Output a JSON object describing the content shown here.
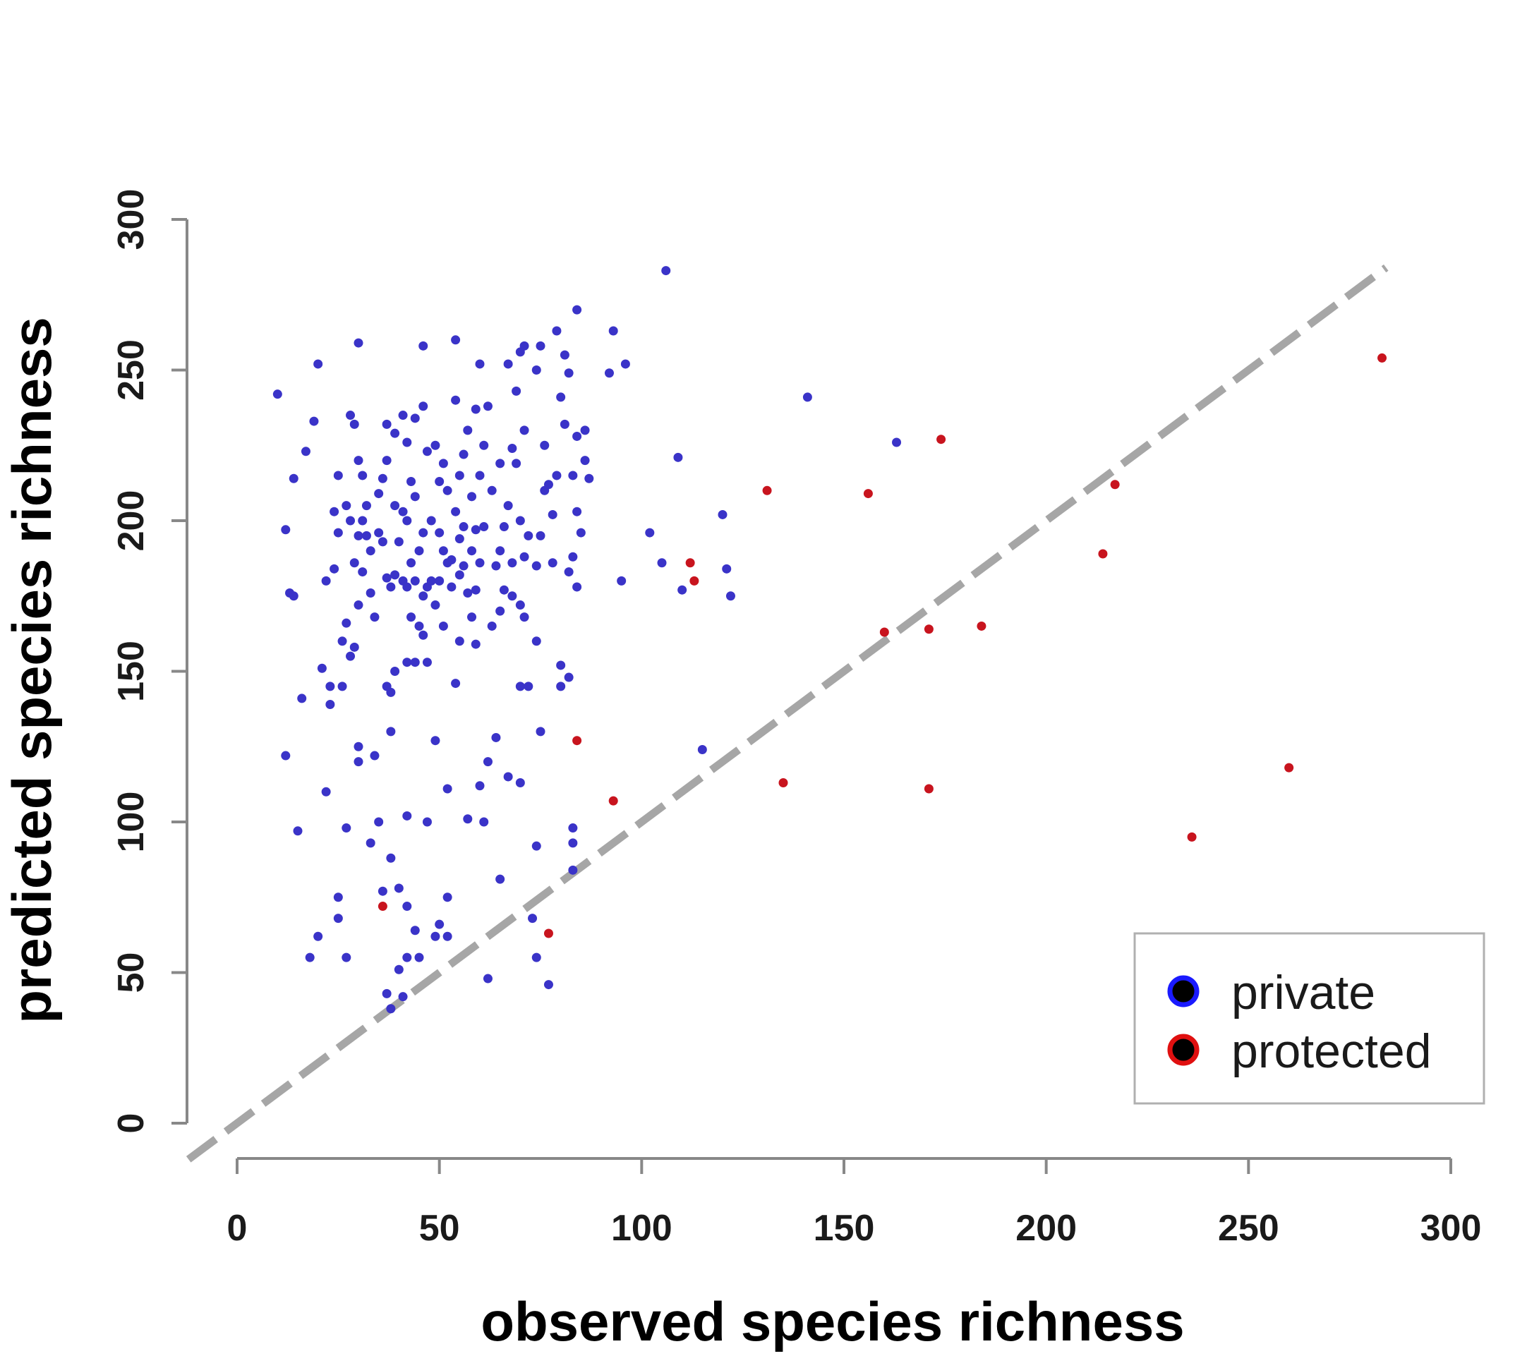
{
  "chart_data": {
    "type": "scatter",
    "title": "",
    "xlabel": "observed species richness",
    "ylabel": "predicted species richness",
    "xlim": [
      0,
      300
    ],
    "ylim": [
      0,
      300
    ],
    "xticks": [
      "0",
      "50",
      "100",
      "150",
      "200",
      "250",
      "300"
    ],
    "yticks": [
      "0",
      "50",
      "100",
      "150",
      "200",
      "250",
      "300"
    ],
    "grid": false,
    "legend_position": "bottom-right",
    "reference_line": {
      "type": "1:1",
      "style": "dashed",
      "color": "#a6a6a6"
    },
    "series": [
      {
        "name": "private",
        "color": "#3a33c8",
        "legend_marker_color": "#1a1aff",
        "points": [
          [
            10,
            242
          ],
          [
            12,
            197
          ],
          [
            12,
            122
          ],
          [
            13,
            176
          ],
          [
            14,
            175
          ],
          [
            14,
            214
          ],
          [
            15,
            97
          ],
          [
            16,
            141
          ],
          [
            17,
            223
          ],
          [
            18,
            55
          ],
          [
            19,
            233
          ],
          [
            20,
            252
          ],
          [
            20,
            62
          ],
          [
            21,
            151
          ],
          [
            22,
            180
          ],
          [
            22,
            110
          ],
          [
            23,
            145
          ],
          [
            23,
            139
          ],
          [
            24,
            203
          ],
          [
            24,
            184
          ],
          [
            25,
            215
          ],
          [
            25,
            196
          ],
          [
            25,
            75
          ],
          [
            25,
            68
          ],
          [
            26,
            160
          ],
          [
            26,
            145
          ],
          [
            27,
            205
          ],
          [
            27,
            166
          ],
          [
            27,
            98
          ],
          [
            27,
            55
          ],
          [
            28,
            235
          ],
          [
            28,
            200
          ],
          [
            28,
            155
          ],
          [
            29,
            232
          ],
          [
            29,
            186
          ],
          [
            29,
            158
          ],
          [
            30,
            259
          ],
          [
            30,
            220
          ],
          [
            30,
            195
          ],
          [
            30,
            172
          ],
          [
            30,
            125
          ],
          [
            30,
            120
          ],
          [
            31,
            215
          ],
          [
            31,
            200
          ],
          [
            31,
            183
          ],
          [
            32,
            205
          ],
          [
            32,
            195
          ],
          [
            33,
            190
          ],
          [
            33,
            176
          ],
          [
            33,
            93
          ],
          [
            34,
            168
          ],
          [
            34,
            122
          ],
          [
            35,
            209
          ],
          [
            35,
            196
          ],
          [
            35,
            100
          ],
          [
            36,
            214
          ],
          [
            36,
            193
          ],
          [
            36,
            77
          ],
          [
            37,
            232
          ],
          [
            37,
            220
          ],
          [
            37,
            181
          ],
          [
            37,
            145
          ],
          [
            37,
            43
          ],
          [
            38,
            178
          ],
          [
            38,
            143
          ],
          [
            38,
            130
          ],
          [
            38,
            88
          ],
          [
            38,
            38
          ],
          [
            39,
            229
          ],
          [
            39,
            205
          ],
          [
            39,
            182
          ],
          [
            39,
            150
          ],
          [
            40,
            193
          ],
          [
            40,
            78
          ],
          [
            40,
            51
          ],
          [
            41,
            235
          ],
          [
            41,
            203
          ],
          [
            41,
            180
          ],
          [
            41,
            42
          ],
          [
            42,
            226
          ],
          [
            42,
            200
          ],
          [
            42,
            178
          ],
          [
            42,
            153
          ],
          [
            42,
            102
          ],
          [
            42,
            72
          ],
          [
            42,
            55
          ],
          [
            43,
            213
          ],
          [
            43,
            186
          ],
          [
            43,
            168
          ],
          [
            44,
            234
          ],
          [
            44,
            208
          ],
          [
            44,
            180
          ],
          [
            44,
            153
          ],
          [
            44,
            64
          ],
          [
            45,
            190
          ],
          [
            45,
            165
          ],
          [
            45,
            55
          ],
          [
            46,
            238
          ],
          [
            46,
            258
          ],
          [
            46,
            196
          ],
          [
            46,
            175
          ],
          [
            46,
            162
          ],
          [
            47,
            223
          ],
          [
            47,
            178
          ],
          [
            47,
            153
          ],
          [
            47,
            100
          ],
          [
            48,
            200
          ],
          [
            48,
            180
          ],
          [
            49,
            225
          ],
          [
            49,
            172
          ],
          [
            49,
            127
          ],
          [
            49,
            62
          ],
          [
            50,
            213
          ],
          [
            50,
            196
          ],
          [
            50,
            180
          ],
          [
            50,
            66
          ],
          [
            51,
            219
          ],
          [
            51,
            190
          ],
          [
            51,
            165
          ],
          [
            52,
            210
          ],
          [
            52,
            186
          ],
          [
            52,
            111
          ],
          [
            52,
            75
          ],
          [
            52,
            62
          ],
          [
            53,
            187
          ],
          [
            53,
            178
          ],
          [
            54,
            260
          ],
          [
            54,
            240
          ],
          [
            54,
            203
          ],
          [
            54,
            146
          ],
          [
            55,
            215
          ],
          [
            55,
            194
          ],
          [
            55,
            182
          ],
          [
            55,
            160
          ],
          [
            56,
            222
          ],
          [
            56,
            198
          ],
          [
            56,
            185
          ],
          [
            57,
            230
          ],
          [
            57,
            176
          ],
          [
            57,
            101
          ],
          [
            58,
            208
          ],
          [
            58,
            190
          ],
          [
            58,
            168
          ],
          [
            59,
            237
          ],
          [
            59,
            197
          ],
          [
            59,
            177
          ],
          [
            59,
            159
          ],
          [
            60,
            252
          ],
          [
            60,
            215
          ],
          [
            60,
            186
          ],
          [
            60,
            112
          ],
          [
            61,
            225
          ],
          [
            61,
            198
          ],
          [
            61,
            100
          ],
          [
            62,
            238
          ],
          [
            62,
            120
          ],
          [
            62,
            48
          ],
          [
            63,
            210
          ],
          [
            63,
            165
          ],
          [
            64,
            185
          ],
          [
            64,
            128
          ],
          [
            65,
            219
          ],
          [
            65,
            190
          ],
          [
            65,
            170
          ],
          [
            65,
            81
          ],
          [
            66,
            198
          ],
          [
            66,
            177
          ],
          [
            67,
            252
          ],
          [
            67,
            205
          ],
          [
            67,
            115
          ],
          [
            68,
            224
          ],
          [
            68,
            186
          ],
          [
            68,
            175
          ],
          [
            69,
            243
          ],
          [
            69,
            219
          ],
          [
            70,
            256
          ],
          [
            70,
            200
          ],
          [
            70,
            172
          ],
          [
            70,
            145
          ],
          [
            70,
            113
          ],
          [
            71,
            258
          ],
          [
            71,
            230
          ],
          [
            71,
            188
          ],
          [
            71,
            168
          ],
          [
            72,
            195
          ],
          [
            72,
            145
          ],
          [
            73,
            68
          ],
          [
            74,
            250
          ],
          [
            74,
            185
          ],
          [
            74,
            160
          ],
          [
            74,
            92
          ],
          [
            74,
            55
          ],
          [
            75,
            258
          ],
          [
            75,
            195
          ],
          [
            75,
            130
          ],
          [
            76,
            225
          ],
          [
            76,
            210
          ],
          [
            77,
            212
          ],
          [
            77,
            46
          ],
          [
            78,
            202
          ],
          [
            78,
            186
          ],
          [
            79,
            263
          ],
          [
            79,
            215
          ],
          [
            80,
            241
          ],
          [
            80,
            152
          ],
          [
            80,
            145
          ],
          [
            81,
            255
          ],
          [
            81,
            232
          ],
          [
            82,
            183
          ],
          [
            82,
            249
          ],
          [
            82,
            148
          ],
          [
            83,
            215
          ],
          [
            83,
            188
          ],
          [
            83,
            98
          ],
          [
            83,
            93
          ],
          [
            83,
            84
          ],
          [
            84,
            270
          ],
          [
            84,
            228
          ],
          [
            84,
            203
          ],
          [
            84,
            178
          ],
          [
            85,
            196
          ],
          [
            86,
            230
          ],
          [
            86,
            220
          ],
          [
            87,
            214
          ],
          [
            92,
            249
          ],
          [
            93,
            263
          ],
          [
            95,
            180
          ],
          [
            96,
            252
          ],
          [
            102,
            196
          ],
          [
            105,
            186
          ],
          [
            106,
            283
          ],
          [
            109,
            221
          ],
          [
            110,
            177
          ],
          [
            115,
            124
          ],
          [
            120,
            202
          ],
          [
            121,
            184
          ],
          [
            122,
            175
          ],
          [
            141,
            241
          ],
          [
            163,
            226
          ]
        ]
      },
      {
        "name": "protected",
        "color": "#c8141e",
        "legend_marker_color": "#e01010",
        "points": [
          [
            36,
            72
          ],
          [
            77,
            63
          ],
          [
            84,
            127
          ],
          [
            93,
            107
          ],
          [
            112,
            186
          ],
          [
            113,
            180
          ],
          [
            131,
            210
          ],
          [
            135,
            113
          ],
          [
            156,
            209
          ],
          [
            160,
            163
          ],
          [
            171,
            164
          ],
          [
            171,
            111
          ],
          [
            174,
            227
          ],
          [
            184,
            165
          ],
          [
            214,
            189
          ],
          [
            217,
            212
          ],
          [
            236,
            95
          ],
          [
            260,
            118
          ],
          [
            283,
            254
          ]
        ]
      }
    ]
  }
}
